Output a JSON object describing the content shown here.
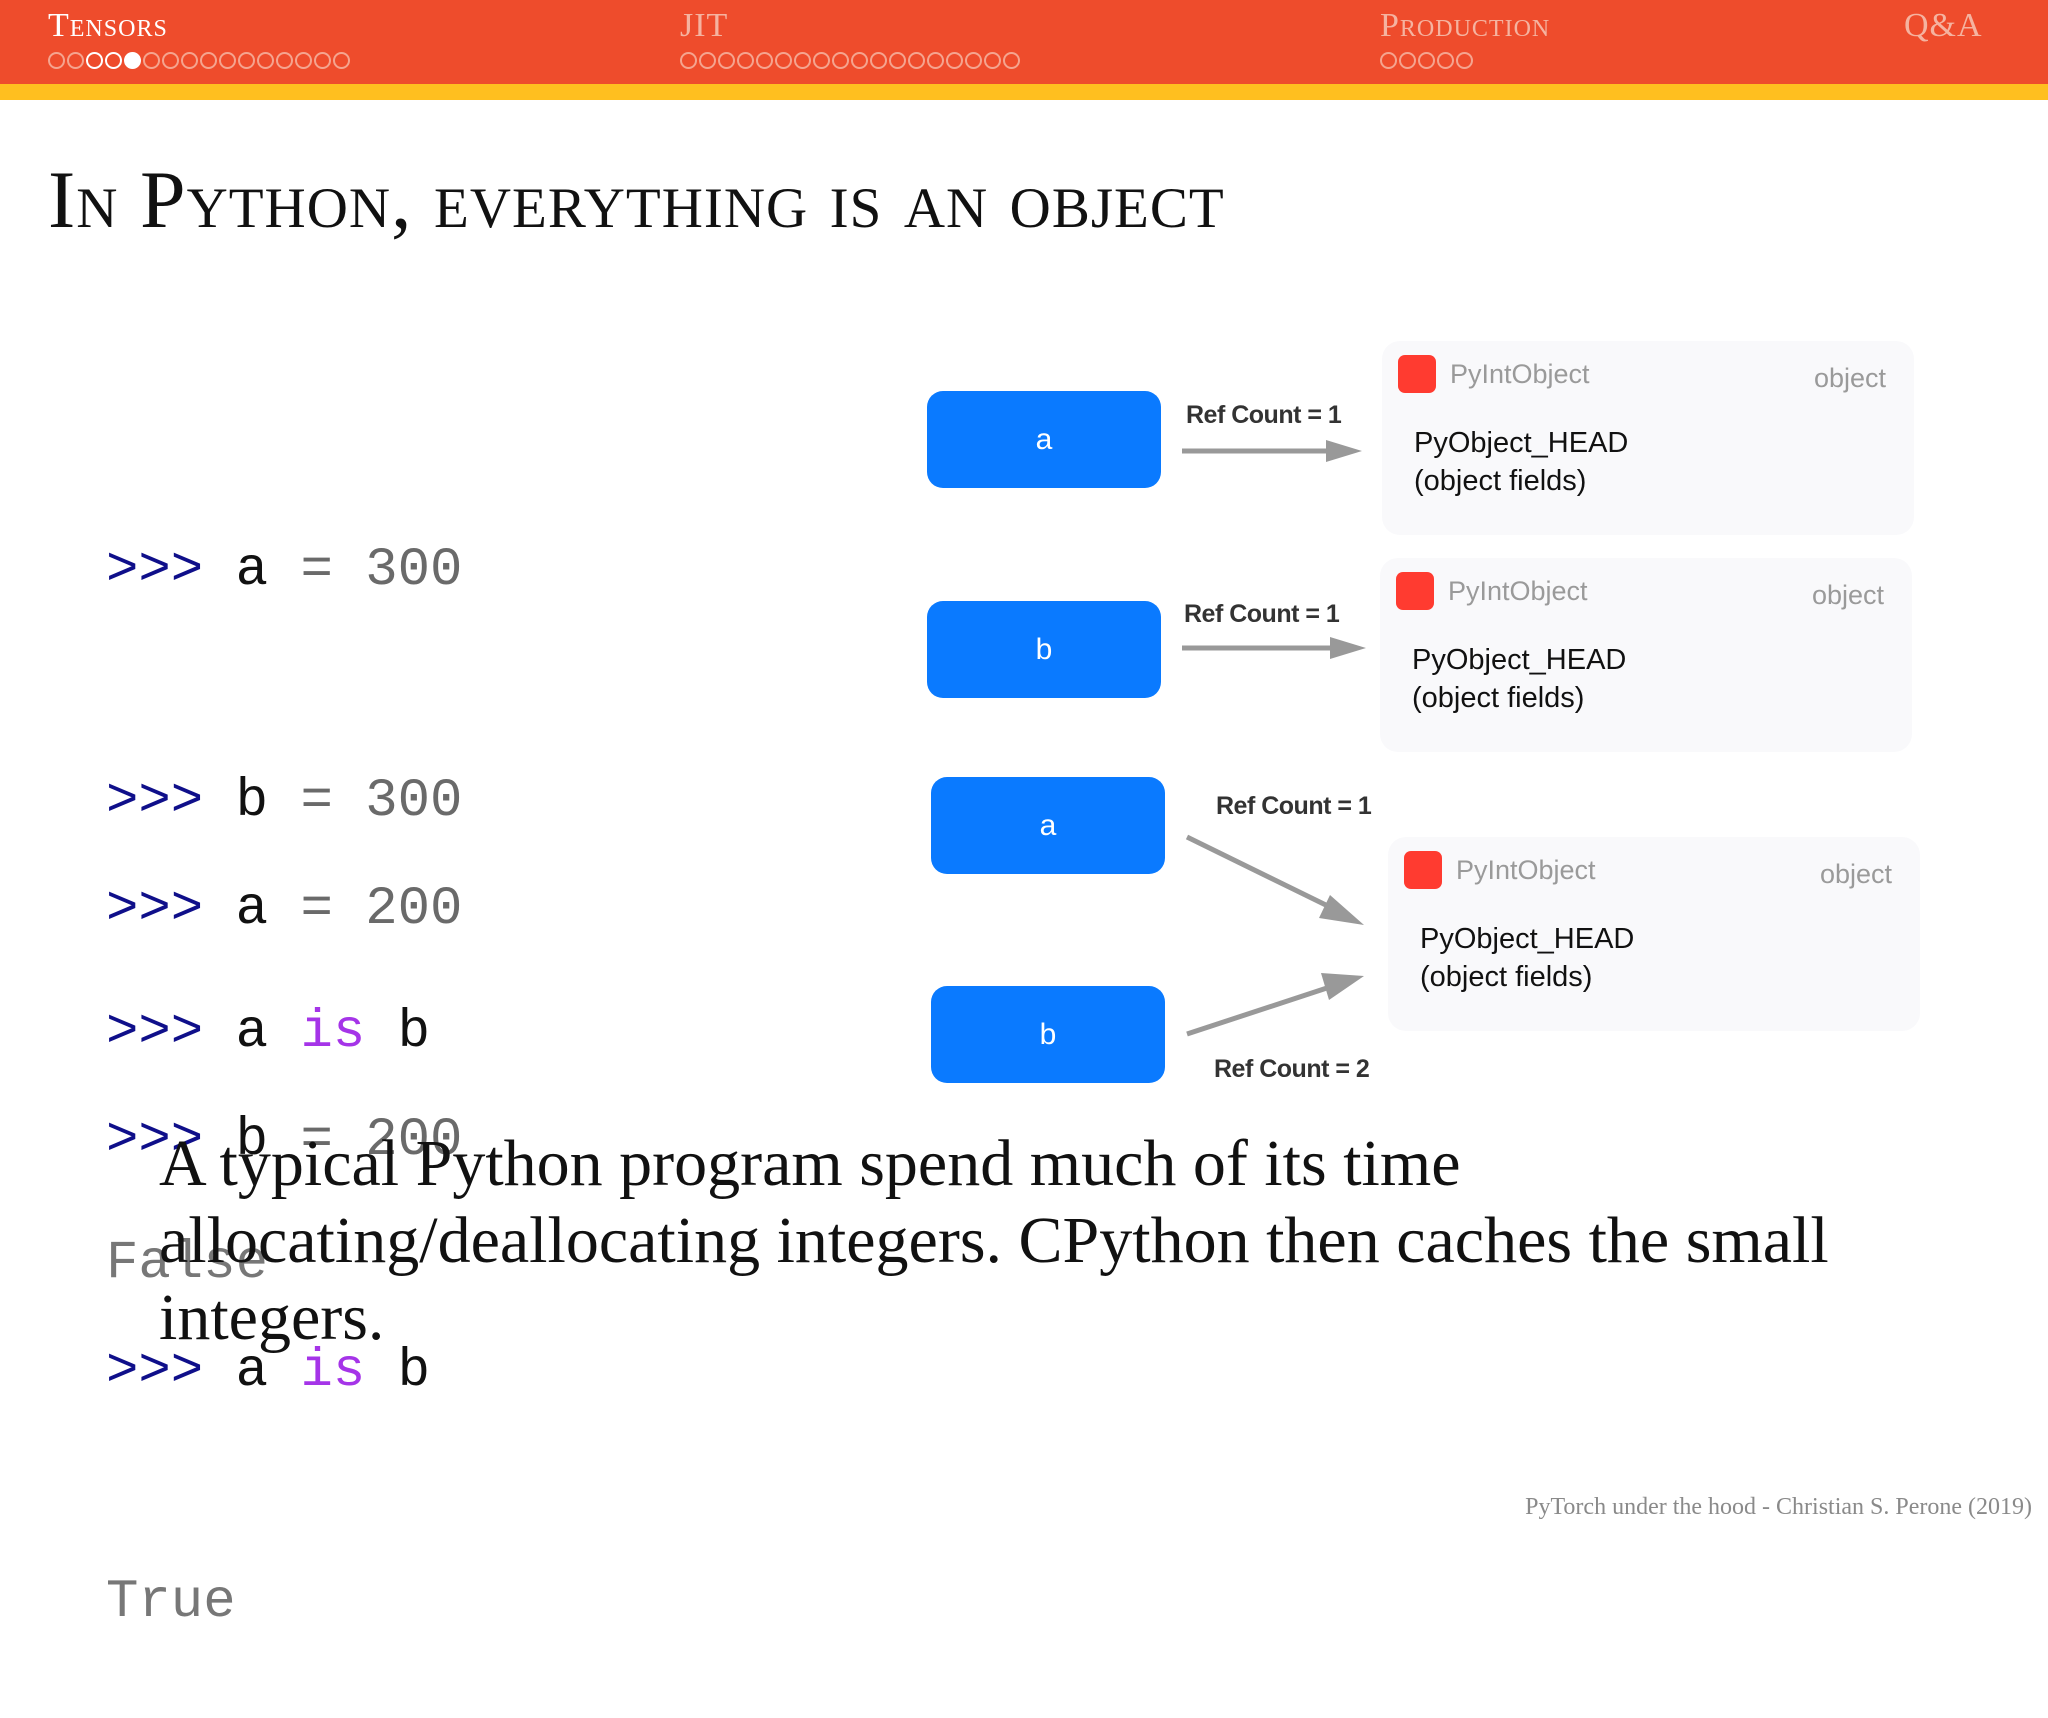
{
  "nav": {
    "sections": [
      {
        "label": "Tensors",
        "dots": 16,
        "seen": [
          2,
          3
        ],
        "current": 4
      },
      {
        "label": "JIT",
        "dots": 18,
        "seen": [],
        "current": -1
      },
      {
        "label": "Production",
        "dots": 5,
        "seen": [],
        "current": -1
      },
      {
        "label": "Q&A",
        "dots": 0,
        "seen": [],
        "current": -1
      }
    ]
  },
  "slide": {
    "title": "In Python, everything is an object",
    "code": {
      "block1": [
        {
          "prompt": ">>>",
          "lhs": "a",
          "op": "=",
          "rhs": "300"
        },
        {
          "prompt": ">>>",
          "lhs": "b",
          "op": "=",
          "rhs": "300"
        },
        {
          "prompt": ">>>",
          "lhs": "a",
          "kw": "is",
          "rhs": "b"
        },
        {
          "output": "False"
        }
      ],
      "block2": [
        {
          "prompt": ">>>",
          "lhs": "a",
          "op": "=",
          "rhs": "200"
        },
        {
          "prompt": ">>>",
          "lhs": "b",
          "op": "=",
          "rhs": "200"
        },
        {
          "prompt": ">>>",
          "lhs": "a",
          "kw": "is",
          "rhs": "b"
        },
        {
          "output": "True"
        }
      ]
    },
    "diagram": {
      "vars": [
        "a",
        "b",
        "a",
        "b"
      ],
      "ref_labels": [
        "Ref Count = 1",
        "Ref Count = 1",
        "Ref Count = 1",
        "Ref Count = 2"
      ],
      "cards": [
        {
          "type": "PyIntObject",
          "kind": "object",
          "field1": "PyObject_HEAD",
          "field2": "(object fields)"
        },
        {
          "type": "PyIntObject",
          "kind": "object",
          "field1": "PyObject_HEAD",
          "field2": "(object fields)"
        },
        {
          "type": "PyIntObject",
          "kind": "object",
          "field1": "PyObject_HEAD",
          "field2": "(object fields)"
        }
      ]
    },
    "body": "A typical Python program spend much of its time allocating/deallocating integers.  CPython then caches the small integers.",
    "footer": "PyTorch under the hood - Christian S. Perone (2019)"
  },
  "colors": {
    "header": "#ee4c2c",
    "header_bar": "#ffbf1f",
    "var_box": "#0a7aff",
    "type_marker": "#ff3b30",
    "prompt": "#0f0f8a",
    "keyword": "#a534e8"
  }
}
